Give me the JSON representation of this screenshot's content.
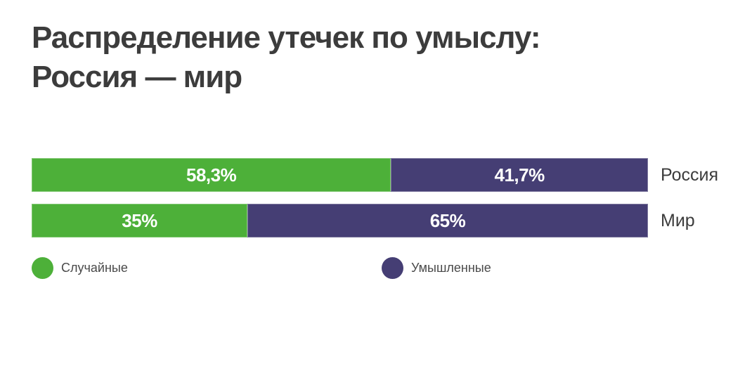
{
  "title": {
    "line1": "Распределение утечек по умыслу:",
    "line2": "Россия — мир"
  },
  "colors": {
    "accidental_green": "#4db039",
    "intentional_purple": "#453e74",
    "title_text": "#3c3c3c",
    "value_label_text": "#ffffff",
    "background": "#ffffff"
  },
  "chart_data": {
    "type": "bar",
    "orientation": "horizontal",
    "stacked": true,
    "title": "Распределение утечек по умыслу: Россия — мир",
    "categories": [
      "Россия",
      "Мир"
    ],
    "series": [
      {
        "name": "Случайные",
        "color": "#4db039",
        "values": [
          58.3,
          35
        ]
      },
      {
        "name": "Умышленные",
        "color": "#453e74",
        "values": [
          41.7,
          65
        ]
      }
    ],
    "value_labels": [
      [
        "58,3%",
        "41,7%"
      ],
      [
        "35%",
        "65%"
      ]
    ],
    "xlim": [
      0,
      100
    ],
    "grid": false,
    "axes_visible": false,
    "legend_position": "bottom-left"
  },
  "legend": [
    {
      "label": "Случайные",
      "color": "#4db039"
    },
    {
      "label": "Умышленные",
      "color": "#453e74"
    }
  ]
}
